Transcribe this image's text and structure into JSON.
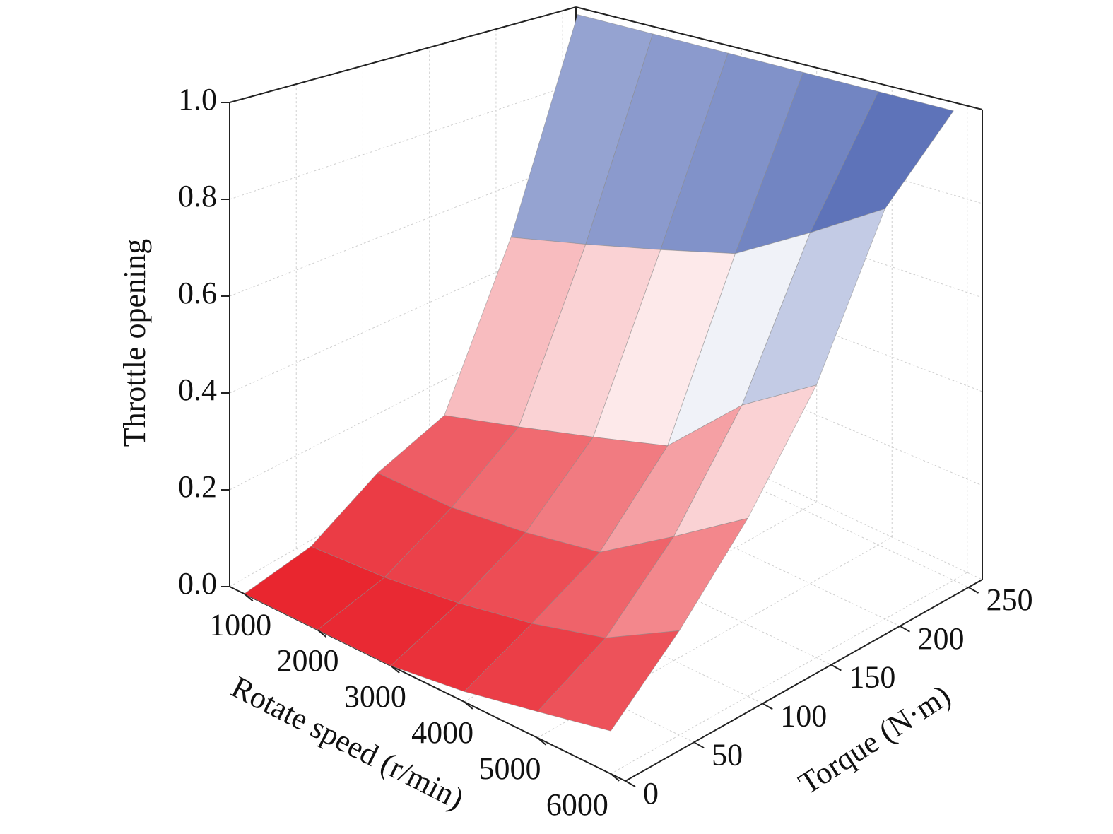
{
  "chart_data": {
    "type": "surface",
    "xlabel": "Rotate speed (r/min)",
    "ylabel": "Torque (N·m)",
    "zlabel": "Throttle opening",
    "x": [
      1000,
      2000,
      3000,
      4000,
      5000,
      6000
    ],
    "y": [
      0,
      50,
      100,
      150,
      200,
      250
    ],
    "z": [
      [
        0,
        0.02,
        0.1,
        0.15,
        0.5,
        1
      ],
      [
        0,
        0.03,
        0.1,
        0.2,
        0.55,
        1
      ],
      [
        0,
        0.05,
        0.12,
        0.25,
        0.6,
        1
      ],
      [
        0.02,
        0.08,
        0.15,
        0.3,
        0.65,
        1
      ],
      [
        0.05,
        0.12,
        0.25,
        0.45,
        0.75,
        1
      ],
      [
        0.08,
        0.2,
        0.35,
        0.55,
        0.85,
        1
      ]
    ],
    "xlim": [
      800,
      6200
    ],
    "ylim": [
      0,
      260
    ],
    "zlim": [
      0,
      1
    ],
    "xticks": [
      1000,
      2000,
      3000,
      4000,
      5000,
      6000
    ],
    "yticks": [
      0,
      50,
      100,
      150,
      200,
      250
    ],
    "zticks": [
      {
        "value": 0,
        "label": "0.0"
      },
      0.2,
      0.4,
      0.6,
      0.8,
      {
        "value": 1,
        "label": "1.0"
      }
    ],
    "colormap": [
      "#e8202a",
      "#ffffff",
      "#3650a8"
    ],
    "grid": true
  }
}
